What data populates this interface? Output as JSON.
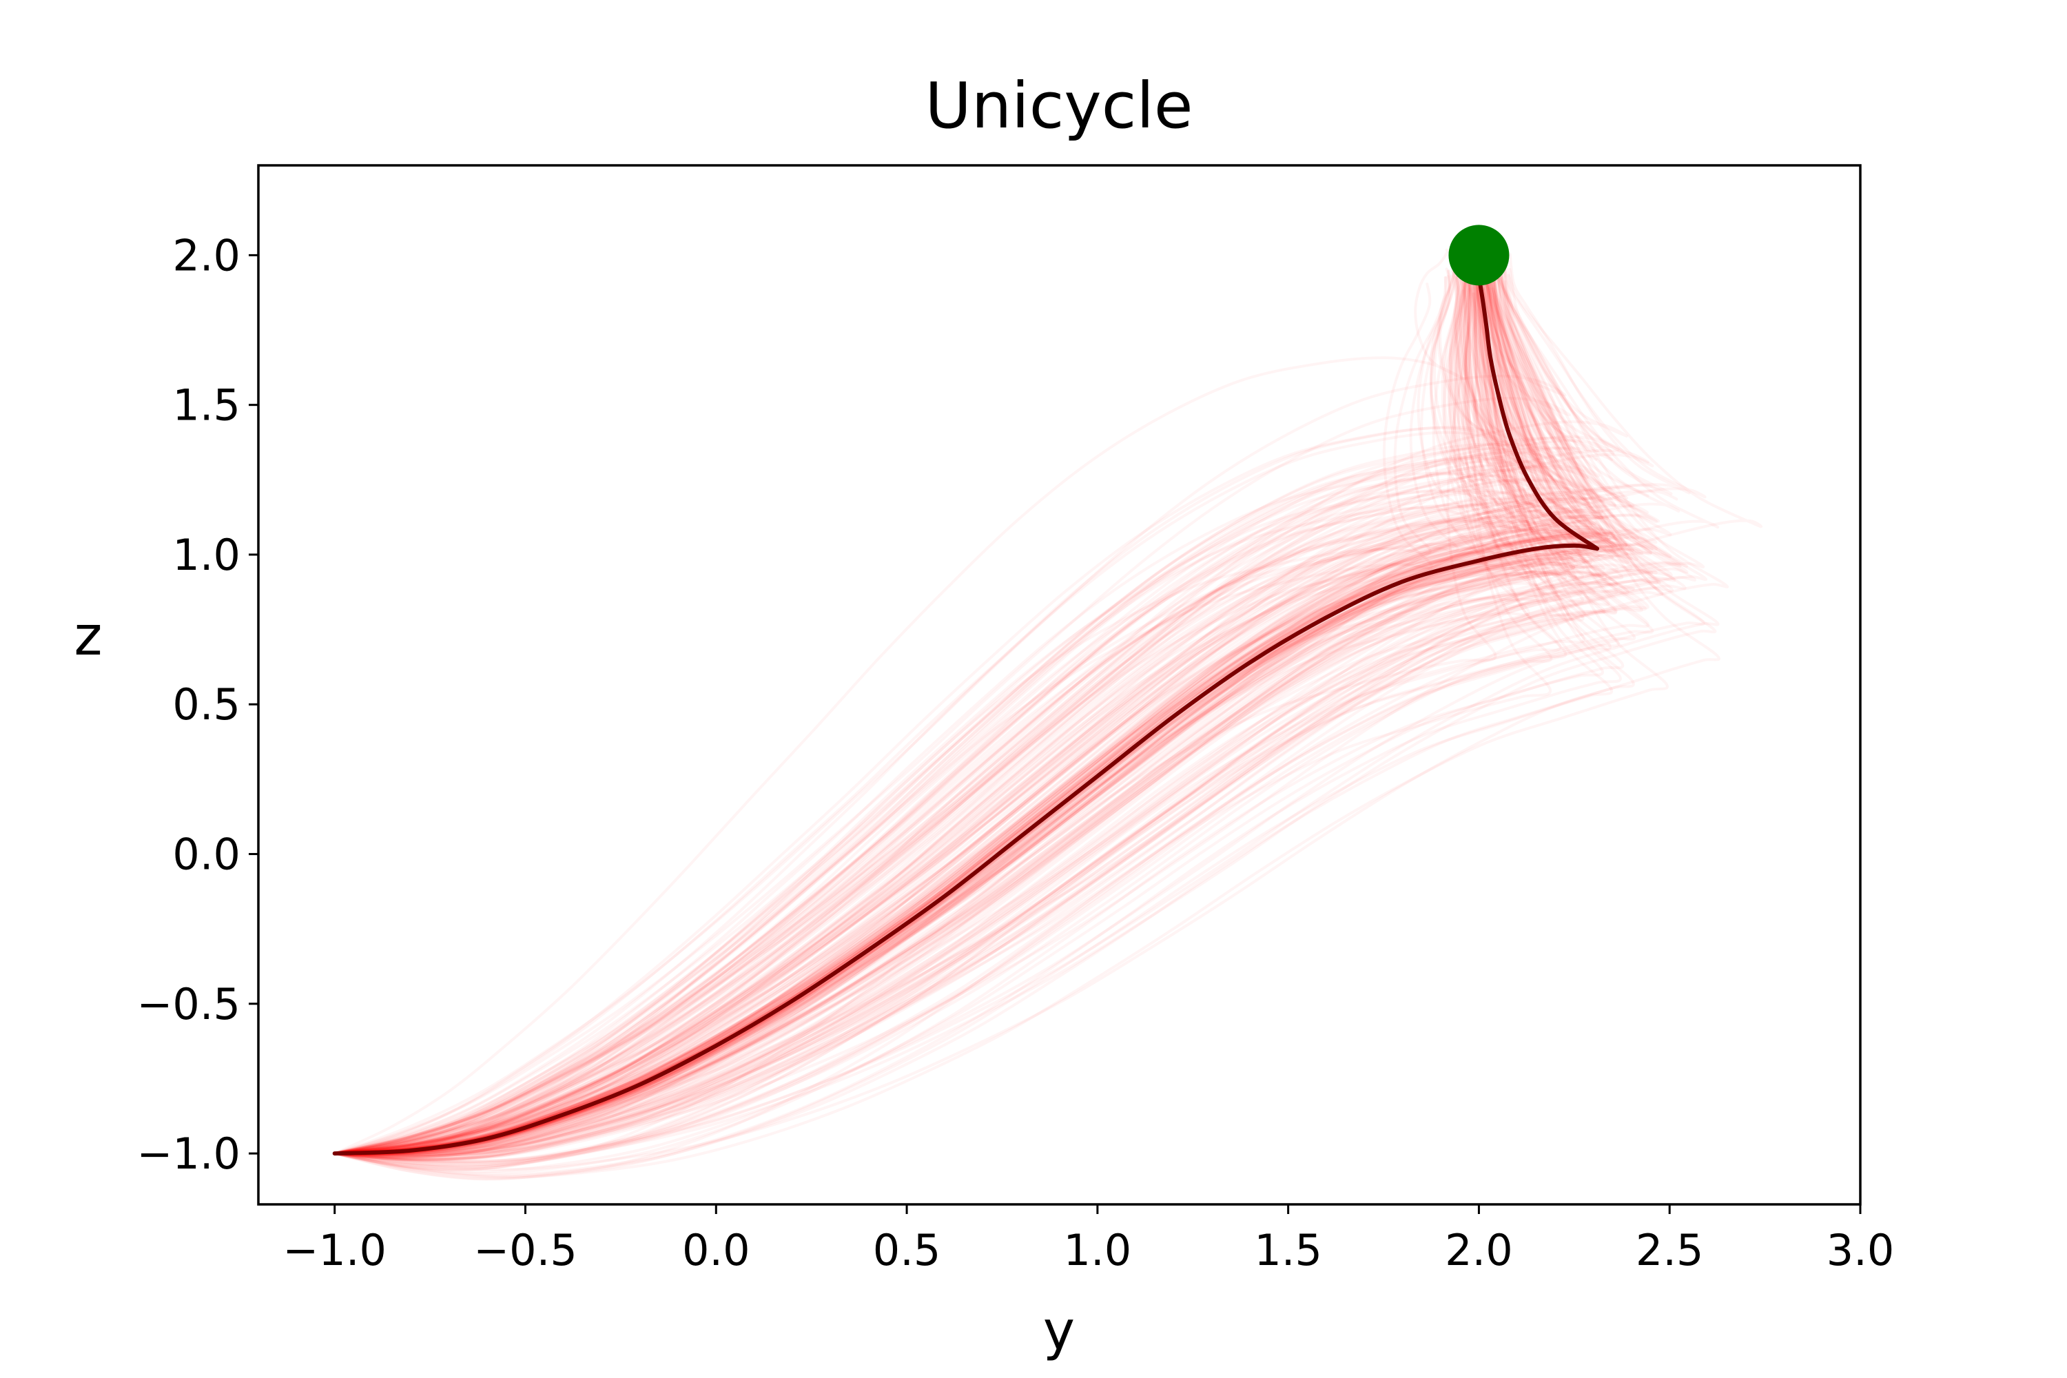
{
  "chart_data": {
    "type": "line",
    "title": "Unicycle",
    "xlabel": "y",
    "ylabel": "z",
    "xlim": [
      -1.2,
      3.0
    ],
    "ylim": [
      -1.17,
      2.3
    ],
    "xticks": [
      -1.0,
      -0.5,
      0.0,
      0.5,
      1.0,
      1.5,
      2.0,
      2.5,
      3.0
    ],
    "xtick_labels": [
      "−1.0",
      "−0.5",
      "0.0",
      "0.5",
      "1.0",
      "1.5",
      "2.0",
      "2.5",
      "3.0"
    ],
    "yticks": [
      -1.0,
      -0.5,
      0.0,
      0.5,
      1.0,
      1.5,
      2.0
    ],
    "ytick_labels": [
      "−1.0",
      "−0.5",
      "0.0",
      "0.5",
      "1.0",
      "1.5",
      "2.0"
    ],
    "grid": false,
    "colors": {
      "sampled_trajectories": "#ff0000",
      "mean_trajectory": "#7a0000",
      "goal_marker": "#008000"
    },
    "series": [
      {
        "x": [
          -1.0,
          -0.8,
          -0.6,
          -0.4,
          -0.2,
          0.0,
          0.2,
          0.4,
          0.6,
          0.8,
          1.0,
          1.2,
          1.4,
          1.6,
          1.8,
          2.0,
          2.15,
          2.25,
          2.31
        ],
        "y": [
          -1.0,
          -0.99,
          -0.95,
          -0.87,
          -0.77,
          -0.64,
          -0.49,
          -0.32,
          -0.14,
          0.06,
          0.26,
          0.46,
          0.64,
          0.79,
          0.91,
          0.98,
          1.02,
          1.03,
          1.02
        ]
      },
      {
        "x": [
          2.31,
          2.2,
          2.13,
          2.08,
          2.05,
          2.03,
          2.02,
          2.01,
          2.0
        ],
        "y": [
          1.02,
          1.12,
          1.25,
          1.4,
          1.54,
          1.66,
          1.76,
          1.85,
          1.93
        ]
      }
    ],
    "goal": {
      "x": 2.0,
      "y": 2.0
    },
    "start": {
      "x": -1.0,
      "y": -1.0
    },
    "sampled_trajectory_count": 200
  }
}
